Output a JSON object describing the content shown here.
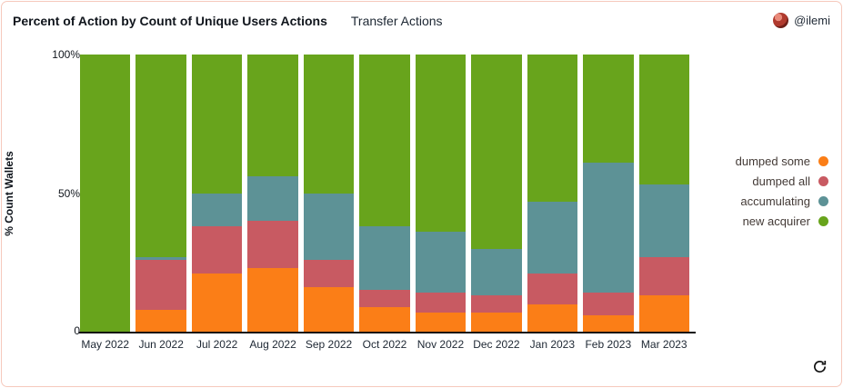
{
  "header": {
    "title": "Percent of Action by Count of Unique Users Actions",
    "subtitle": "Transfer Actions",
    "user": "@ilemi"
  },
  "chart_data": {
    "type": "bar",
    "stacked": true,
    "percent": true,
    "title": "Percent of Action by Count of Unique Users Actions",
    "subtitle": "Transfer Actions",
    "xlabel": "",
    "ylabel": "% Count Wallets",
    "ylim": [
      0,
      100
    ],
    "y_ticks": {
      "top": "100%",
      "mid": "50%",
      "bottom": "0"
    },
    "grid": false,
    "legend_position": "right",
    "categories": [
      "May 2022",
      "Jun 2022",
      "Jul 2022",
      "Aug 2022",
      "Sep 2022",
      "Oct 2022",
      "Nov 2022",
      "Dec 2022",
      "Jan 2023",
      "Feb 2023",
      "Mar 2023"
    ],
    "series": [
      {
        "name": "dumped some",
        "color": "#fb7e17",
        "values": [
          0,
          8,
          21,
          23,
          16,
          9,
          7,
          7,
          10,
          6,
          13
        ]
      },
      {
        "name": "dumped all",
        "color": "#c85a62",
        "values": [
          0,
          18,
          17,
          17,
          10,
          6,
          7,
          6,
          11,
          8,
          14
        ]
      },
      {
        "name": "accumulating",
        "color": "#5d9296",
        "values": [
          0,
          1,
          12,
          16,
          24,
          23,
          22,
          17,
          26,
          47,
          26
        ]
      },
      {
        "name": "new acquirer",
        "color": "#68a41c",
        "values": [
          100,
          73,
          50,
          44,
          50,
          62,
          64,
          70,
          53,
          39,
          47
        ]
      }
    ]
  },
  "colors": {
    "card_border": "#f6c9bc",
    "axis": "#111111"
  },
  "footer": {
    "refresh_icon": "refresh"
  }
}
